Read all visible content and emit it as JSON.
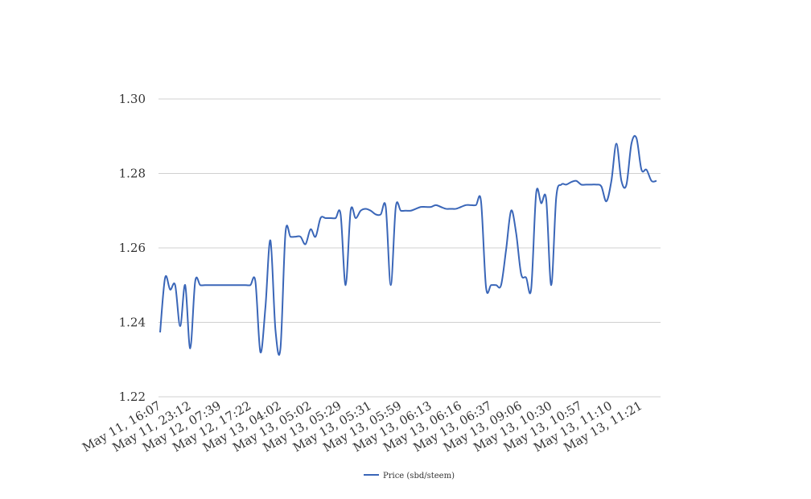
{
  "chart_data": {
    "type": "line",
    "categories": [
      "May 11, 16:07",
      null,
      null,
      null,
      null,
      null,
      "May 11, 23:12",
      null,
      null,
      null,
      null,
      null,
      "May 12, 07:39",
      null,
      null,
      null,
      null,
      null,
      "May 12, 17:22",
      null,
      null,
      null,
      null,
      null,
      "May 13, 04:02",
      null,
      null,
      null,
      null,
      null,
      "May 13, 05:02",
      null,
      null,
      null,
      null,
      null,
      "May 13, 05:29",
      null,
      null,
      null,
      null,
      null,
      "May 13, 05:31",
      null,
      null,
      null,
      null,
      null,
      "May 13, 05:59",
      null,
      null,
      null,
      null,
      null,
      "May 13, 06:13",
      null,
      null,
      null,
      null,
      null,
      "May 13, 06:16",
      null,
      null,
      null,
      null,
      null,
      "May 13, 06:37",
      null,
      null,
      null,
      null,
      null,
      "May 13, 09:06",
      null,
      null,
      null,
      null,
      null,
      "May 13, 10:30",
      null,
      null,
      null,
      null,
      null,
      "May 13, 10:57",
      null,
      null,
      null,
      null,
      null,
      "May 13, 11:10",
      null,
      null,
      null,
      null,
      null,
      "May 13, 11:21",
      null,
      null,
      null
    ],
    "series": [
      {
        "name": "Price (sbd/steem)",
        "color": "#3a66b8",
        "values": [
          1.2373,
          1.252,
          1.2488,
          1.25,
          1.239,
          1.25,
          1.233,
          1.251,
          1.25,
          1.25,
          1.25,
          1.25,
          1.25,
          1.25,
          1.25,
          1.25,
          1.25,
          1.25,
          1.25,
          1.251,
          1.232,
          1.244,
          1.262,
          1.238,
          1.233,
          1.264,
          1.263,
          1.263,
          1.263,
          1.261,
          1.265,
          1.263,
          1.268,
          1.268,
          1.268,
          1.268,
          1.269,
          1.25,
          1.27,
          1.268,
          1.27,
          1.2705,
          1.27,
          1.269,
          1.269,
          1.271,
          1.25,
          1.271,
          1.27,
          1.27,
          1.27,
          1.2705,
          1.271,
          1.271,
          1.271,
          1.2715,
          1.271,
          1.2705,
          1.2705,
          1.2705,
          1.271,
          1.2715,
          1.2715,
          1.2715,
          1.2725,
          1.2494,
          1.25,
          1.25,
          1.25,
          1.2595,
          1.27,
          1.264,
          1.253,
          1.252,
          1.249,
          1.2747,
          1.272,
          1.273,
          1.25,
          1.2736,
          1.277,
          1.277,
          1.2777,
          1.278,
          1.277,
          1.277,
          1.277,
          1.277,
          1.2765,
          1.2725,
          1.278,
          1.288,
          1.278,
          1.277,
          1.288,
          1.2895,
          1.281,
          1.281,
          1.278,
          1.278
        ]
      }
    ],
    "ylim": [
      1.22,
      1.3
    ],
    "yticks": [
      {
        "value": 1.22,
        "label": "1.22"
      },
      {
        "value": 1.24,
        "label": "1.24"
      },
      {
        "value": 1.26,
        "label": "1.26"
      },
      {
        "value": 1.28,
        "label": "1.28"
      },
      {
        "value": 1.3,
        "label": "1.30"
      }
    ],
    "grid": true,
    "legend": "bottom"
  }
}
